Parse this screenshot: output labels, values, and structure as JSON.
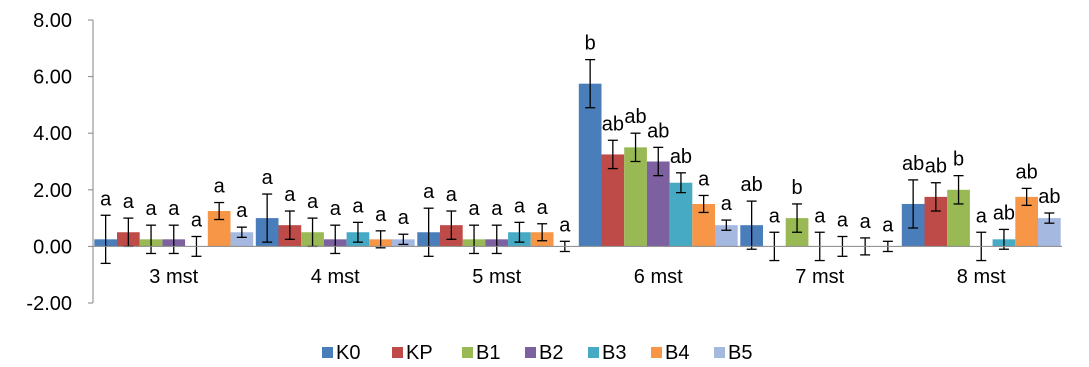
{
  "chart_data": {
    "type": "bar",
    "title": "",
    "xlabel": "",
    "ylabel": "",
    "ylim": [
      -2,
      8
    ],
    "yticks": [
      "8.00",
      "6.00",
      "4.00",
      "2.00",
      "0.00",
      "-2.00"
    ],
    "ytick_values": [
      8,
      6,
      4,
      2,
      0,
      -2
    ],
    "categories": [
      "3 mst",
      "4 mst",
      "5 mst",
      "6 mst",
      "7 mst",
      "8 mst"
    ],
    "legend_position": "bottom",
    "grid": false,
    "series": [
      {
        "name": "K0",
        "color": "#4a7ebb",
        "values": [
          0.25,
          1.0,
          0.5,
          5.75,
          0.75,
          1.5
        ],
        "errors": [
          0.85,
          0.85,
          0.85,
          0.85,
          0.85,
          0.85
        ],
        "labels": [
          "a",
          "a",
          "a",
          "b",
          "ab",
          "ab"
        ]
      },
      {
        "name": "KP",
        "color": "#be4b48",
        "values": [
          0.5,
          0.75,
          0.75,
          3.25,
          0.0,
          1.75
        ],
        "errors": [
          0.5,
          0.5,
          0.5,
          0.5,
          0.5,
          0.5
        ],
        "labels": [
          "a",
          "a",
          "a",
          "ab",
          "a",
          "ab"
        ]
      },
      {
        "name": "B1",
        "color": "#98b954",
        "values": [
          0.25,
          0.5,
          0.25,
          3.5,
          1.0,
          2.0
        ],
        "errors": [
          0.5,
          0.5,
          0.5,
          0.5,
          0.5,
          0.5
        ],
        "labels": [
          "a",
          "a",
          "a",
          "ab",
          "b",
          "b"
        ]
      },
      {
        "name": "B2",
        "color": "#7d60a0",
        "values": [
          0.25,
          0.25,
          0.25,
          3.0,
          0.0,
          0.0
        ],
        "errors": [
          0.5,
          0.5,
          0.5,
          0.5,
          0.5,
          0.5
        ],
        "labels": [
          "a",
          "a",
          "a",
          "ab",
          "a",
          "a"
        ]
      },
      {
        "name": "B3",
        "color": "#46aac5",
        "values": [
          0.0,
          0.5,
          0.5,
          2.25,
          0.0,
          0.25
        ],
        "errors": [
          0.35,
          0.35,
          0.35,
          0.35,
          0.35,
          0.35
        ],
        "labels": [
          "a",
          "a",
          "a",
          "ab",
          "a",
          "ab"
        ]
      },
      {
        "name": "B4",
        "color": "#f79646",
        "values": [
          1.25,
          0.25,
          0.5,
          1.5,
          0.0,
          1.75
        ],
        "errors": [
          0.3,
          0.3,
          0.3,
          0.3,
          0.3,
          0.3
        ],
        "labels": [
          "a",
          "a",
          "a",
          "a",
          "a",
          "ab"
        ]
      },
      {
        "name": "B5",
        "color": "#a5b8e0",
        "values": [
          0.5,
          0.25,
          0.0,
          0.75,
          0.0,
          1.0
        ],
        "errors": [
          0.18,
          0.18,
          0.18,
          0.18,
          0.18,
          0.18
        ],
        "labels": [
          "a",
          "a",
          "a",
          "a",
          "a",
          "ab"
        ]
      }
    ]
  }
}
